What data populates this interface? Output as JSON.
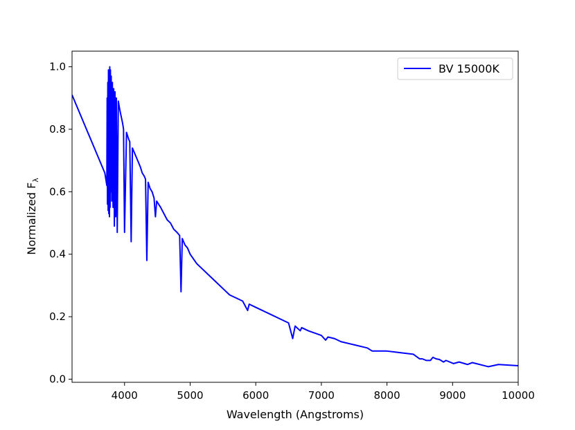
{
  "chart_data": {
    "type": "line",
    "xlabel": "Wavelength (Angstroms)",
    "ylabel": "Normalized F",
    "ylabel_subscript": "λ",
    "xlim": [
      3200,
      10000
    ],
    "ylim": [
      -0.01,
      1.05
    ],
    "x_ticks": [
      4000,
      5000,
      6000,
      7000,
      8000,
      9000,
      10000
    ],
    "x_tick_labels": [
      "4000",
      "5000",
      "6000",
      "7000",
      "8000",
      "9000",
      "10000"
    ],
    "y_ticks": [
      0.0,
      0.2,
      0.4,
      0.6,
      0.8,
      1.0
    ],
    "y_tick_labels": [
      "0.0",
      "0.2",
      "0.4",
      "0.6",
      "0.8",
      "1.0"
    ],
    "grid": false,
    "legend_position": "top-right",
    "series": [
      {
        "name": "BV 15000K",
        "color": "#0000ff",
        "x": [
          3200,
          3300,
          3400,
          3500,
          3600,
          3700,
          3730,
          3735,
          3740,
          3745,
          3750,
          3755,
          3760,
          3765,
          3770,
          3775,
          3780,
          3785,
          3790,
          3797,
          3805,
          3815,
          3825,
          3835,
          3845,
          3855,
          3865,
          3875,
          3889,
          3905,
          3930,
          3950,
          3970,
          3985,
          4000,
          4030,
          4060,
          4080,
          4101,
          4120,
          4160,
          4200,
          4240,
          4270,
          4300,
          4320,
          4340,
          4360,
          4390,
          4420,
          4450,
          4471,
          4490,
          4550,
          4650,
          4700,
          4750,
          4800,
          4840,
          4861,
          4880,
          4920,
          4960,
          5000,
          5100,
          5200,
          5300,
          5400,
          5500,
          5600,
          5700,
          5800,
          5876,
          5900,
          6000,
          6200,
          6400,
          6500,
          6563,
          6600,
          6678,
          6700,
          6800,
          7000,
          7065,
          7100,
          7200,
          7300,
          7500,
          7700,
          7775,
          8000,
          8200,
          8400,
          8498,
          8542,
          8598,
          8662,
          8700,
          8750,
          8800,
          8862,
          8900,
          9015,
          9100,
          9229,
          9300,
          9546,
          9700,
          10000
        ],
        "y": [
          0.91,
          0.86,
          0.81,
          0.76,
          0.71,
          0.66,
          0.62,
          0.9,
          0.56,
          0.95,
          0.54,
          0.99,
          0.53,
          0.98,
          0.52,
          1.0,
          0.55,
          0.99,
          0.6,
          0.97,
          0.57,
          0.95,
          0.55,
          0.93,
          0.49,
          0.92,
          0.52,
          0.9,
          0.47,
          0.89,
          0.86,
          0.84,
          0.82,
          0.8,
          0.47,
          0.79,
          0.77,
          0.76,
          0.44,
          0.74,
          0.72,
          0.7,
          0.68,
          0.66,
          0.65,
          0.64,
          0.38,
          0.63,
          0.61,
          0.6,
          0.58,
          0.52,
          0.57,
          0.55,
          0.51,
          0.5,
          0.48,
          0.47,
          0.46,
          0.28,
          0.45,
          0.43,
          0.42,
          0.4,
          0.37,
          0.35,
          0.33,
          0.31,
          0.29,
          0.27,
          0.26,
          0.25,
          0.22,
          0.24,
          0.23,
          0.21,
          0.19,
          0.18,
          0.13,
          0.17,
          0.155,
          0.165,
          0.155,
          0.14,
          0.125,
          0.135,
          0.13,
          0.12,
          0.11,
          0.1,
          0.09,
          0.09,
          0.085,
          0.08,
          0.065,
          0.065,
          0.06,
          0.06,
          0.07,
          0.065,
          0.063,
          0.055,
          0.06,
          0.05,
          0.055,
          0.047,
          0.053,
          0.04,
          0.047,
          0.043
        ]
      }
    ]
  }
}
